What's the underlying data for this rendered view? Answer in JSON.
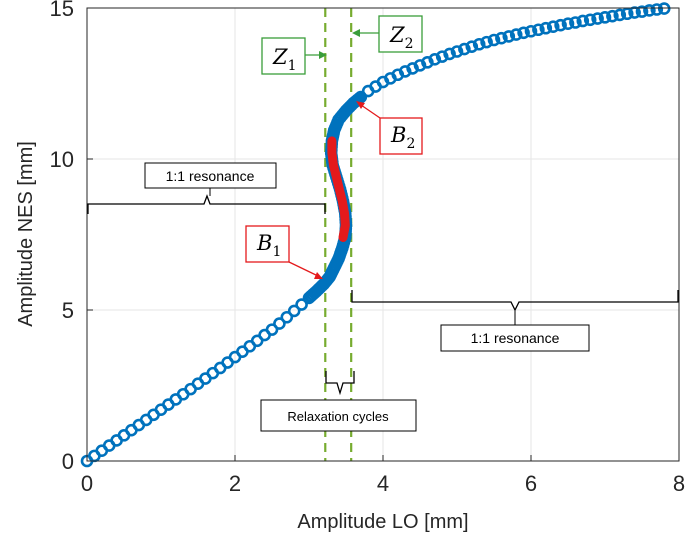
{
  "chart_data": {
    "type": "scatter",
    "xlabel": "Amplitude LO [mm]",
    "ylabel": "Amplitude NES [mm]",
    "xlim": [
      0,
      8
    ],
    "ylim": [
      0,
      15
    ],
    "xticks": [
      "0",
      "2",
      "4",
      "6",
      "8"
    ],
    "yticks": [
      "0",
      "5",
      "10",
      "15"
    ],
    "grid": true,
    "series": [
      {
        "marker": "circle",
        "color": "#0072BD",
        "points": [
          [
            0,
            0
          ],
          [
            0.1,
            0.17
          ],
          [
            0.2,
            0.34
          ],
          [
            0.3,
            0.51
          ],
          [
            0.4,
            0.68
          ],
          [
            0.5,
            0.85
          ],
          [
            0.6,
            1.02
          ],
          [
            0.7,
            1.19
          ],
          [
            0.8,
            1.36
          ],
          [
            0.9,
            1.53
          ],
          [
            1.0,
            1.7
          ],
          [
            1.1,
            1.87
          ],
          [
            1.2,
            2.04
          ],
          [
            1.3,
            2.21
          ],
          [
            1.4,
            2.38
          ],
          [
            1.5,
            2.56
          ],
          [
            1.6,
            2.73
          ],
          [
            1.7,
            2.91
          ],
          [
            1.8,
            3.08
          ],
          [
            1.9,
            3.26
          ],
          [
            2.0,
            3.44
          ],
          [
            2.1,
            3.62
          ],
          [
            2.2,
            3.8
          ],
          [
            2.3,
            3.98
          ],
          [
            2.4,
            4.17
          ],
          [
            2.5,
            4.35
          ],
          [
            2.6,
            4.55
          ],
          [
            2.7,
            4.76
          ],
          [
            2.8,
            4.97
          ],
          [
            2.9,
            5.18
          ],
          [
            3.0,
            5.4
          ],
          [
            3.1,
            5.62
          ],
          [
            3.2,
            5.86
          ],
          [
            3.28,
            6.1
          ],
          [
            3.34,
            6.4
          ],
          [
            3.4,
            6.7
          ],
          [
            3.45,
            7.05
          ],
          [
            3.49,
            7.4
          ],
          [
            3.5,
            7.8
          ],
          [
            3.49,
            8.2
          ],
          [
            3.46,
            8.6
          ],
          [
            3.42,
            9.0
          ],
          [
            3.37,
            9.4
          ],
          [
            3.32,
            9.8
          ],
          [
            3.3,
            10.2
          ],
          [
            3.31,
            10.6
          ],
          [
            3.34,
            10.95
          ],
          [
            3.4,
            11.3
          ],
          [
            3.5,
            11.6
          ],
          [
            3.6,
            11.85
          ],
          [
            3.7,
            12.05
          ],
          [
            3.8,
            12.25
          ],
          [
            3.9,
            12.4
          ],
          [
            4.0,
            12.55
          ],
          [
            4.1,
            12.67
          ],
          [
            4.2,
            12.79
          ],
          [
            4.3,
            12.9
          ],
          [
            4.4,
            13.0
          ],
          [
            4.5,
            13.1
          ],
          [
            4.6,
            13.2
          ],
          [
            4.7,
            13.3
          ],
          [
            4.8,
            13.39
          ],
          [
            4.9,
            13.48
          ],
          [
            5.0,
            13.56
          ],
          [
            5.1,
            13.64
          ],
          [
            5.2,
            13.72
          ],
          [
            5.3,
            13.8
          ],
          [
            5.4,
            13.87
          ],
          [
            5.5,
            13.94
          ],
          [
            5.6,
            14.0
          ],
          [
            5.7,
            14.06
          ],
          [
            5.8,
            14.12
          ],
          [
            5.9,
            14.18
          ],
          [
            6.0,
            14.23
          ],
          [
            6.1,
            14.28
          ],
          [
            6.2,
            14.33
          ],
          [
            6.3,
            14.38
          ],
          [
            6.4,
            14.43
          ],
          [
            6.5,
            14.48
          ],
          [
            6.6,
            14.52
          ],
          [
            6.7,
            14.57
          ],
          [
            6.8,
            14.61
          ],
          [
            6.9,
            14.65
          ],
          [
            7.0,
            14.69
          ],
          [
            7.1,
            14.73
          ],
          [
            7.2,
            14.77
          ],
          [
            7.3,
            14.81
          ],
          [
            7.4,
            14.85
          ],
          [
            7.5,
            14.88
          ],
          [
            7.6,
            14.92
          ],
          [
            7.7,
            14.95
          ],
          [
            7.8,
            14.98
          ]
        ]
      },
      {
        "style": "unstable segment",
        "color": "#E41A1C",
        "points": [
          [
            3.46,
            7.4
          ],
          [
            3.49,
            7.8
          ],
          [
            3.48,
            8.2
          ],
          [
            3.45,
            8.6
          ],
          [
            3.41,
            9.0
          ],
          [
            3.37,
            9.4
          ],
          [
            3.33,
            9.8
          ],
          [
            3.31,
            10.2
          ],
          [
            3.31,
            10.6
          ]
        ]
      }
    ],
    "reference_lines": [
      {
        "x": 3.22,
        "color": "#77AC30",
        "style": "dashed"
      },
      {
        "x": 3.57,
        "color": "#77AC30",
        "style": "dashed"
      }
    ],
    "annotations": {
      "z1": {
        "main": "Z",
        "sub": "1",
        "color": "#3A9D3A"
      },
      "z2": {
        "main": "Z",
        "sub": "2",
        "color": "#3A9D3A"
      },
      "b1": {
        "main": "B",
        "sub": "1",
        "color": "#E41A1C"
      },
      "b2": {
        "main": "B",
        "sub": "2",
        "color": "#E41A1C"
      },
      "left_resonance": "1:1 resonance",
      "right_resonance": "1:1 resonance",
      "relaxation": "Relaxation cycles"
    }
  }
}
